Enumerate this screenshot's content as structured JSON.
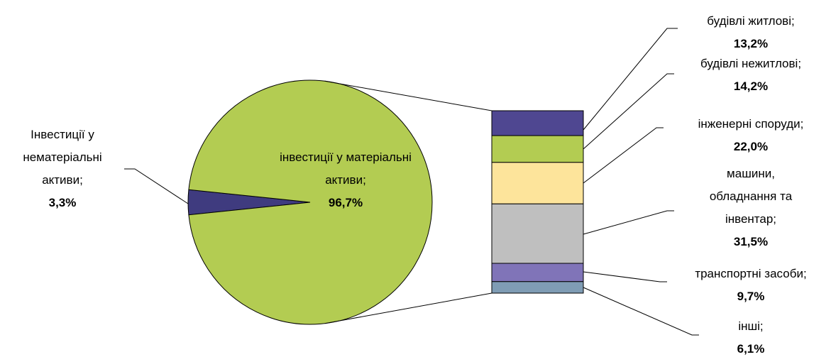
{
  "chart_data": {
    "type": "pie-of-bar",
    "pie": {
      "categories": [
        "Інвестиції у нематеріальні активи;",
        "інвестиції у матеріальні активи;"
      ],
      "values": [
        3.3,
        96.7
      ],
      "value_labels": [
        "3,3%",
        "96,7%"
      ],
      "colors": [
        "#3f3b7f",
        "#b3cc52"
      ]
    },
    "bar": {
      "categories": [
        "будівлі житлові;",
        "будівлі нежитлові;",
        "інженерні споруди;",
        "машини, обладнання та інвентар;",
        "транспортні засоби;",
        "інші;"
      ],
      "values": [
        13.2,
        14.2,
        22.0,
        31.5,
        9.7,
        6.1
      ],
      "value_labels": [
        "13,2%",
        "14,2%",
        "22,0%",
        "31,5%",
        "9,7%",
        "6,1%"
      ],
      "colors": [
        "#4f4791",
        "#b3cc52",
        "#fde49b",
        "#bfbfbf",
        "#8074b8",
        "#7f9cb4"
      ]
    }
  }
}
